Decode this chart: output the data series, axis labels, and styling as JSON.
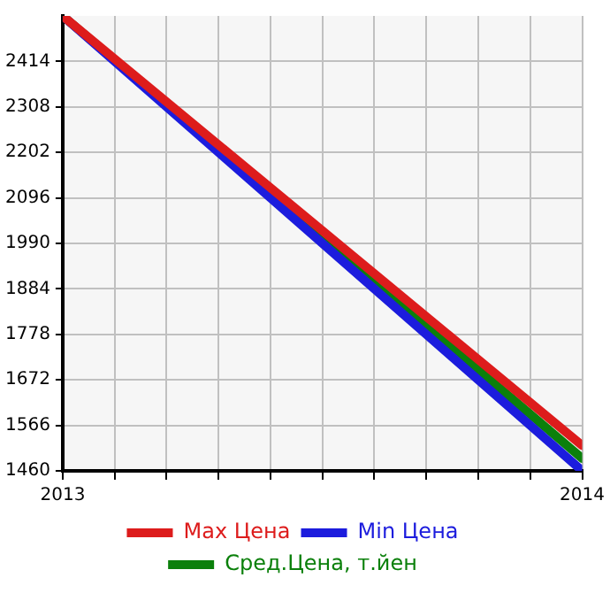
{
  "chart_data": {
    "type": "line",
    "x": [
      2013,
      2014
    ],
    "series": [
      {
        "name": "Max Цена",
        "color": "#dd1c1c",
        "values": [
          2520,
          1519
        ]
      },
      {
        "name": "Min Цена",
        "color": "#1c1cdd",
        "values": [
          2520,
          1460
        ]
      },
      {
        "name": "Сред.Цена, т.йен",
        "color": "#0b800b",
        "values": [
          2520,
          1489
        ]
      }
    ],
    "xlim": [
      2013,
      2014
    ],
    "xticks": [
      2013,
      {
        "value": 2013.1,
        "label": null
      },
      {
        "value": 2013.2,
        "label": null
      },
      {
        "value": 2013.3,
        "label": null
      },
      {
        "value": 2013.4,
        "label": null
      },
      {
        "value": 2013.5,
        "label": null
      },
      {
        "value": 2013.6,
        "label": null
      },
      {
        "value": 2013.7,
        "label": null
      },
      {
        "value": 2013.8,
        "label": null
      },
      {
        "value": 2013.9,
        "label": null
      },
      2014
    ],
    "ylim": [
      1460,
      2520
    ],
    "yticks": [
      1460,
      1566,
      1672,
      1778,
      1884,
      1990,
      2096,
      2202,
      2308,
      2414
    ],
    "grid": true,
    "legend": "bottom",
    "marker": "none",
    "line_style": "solid"
  }
}
